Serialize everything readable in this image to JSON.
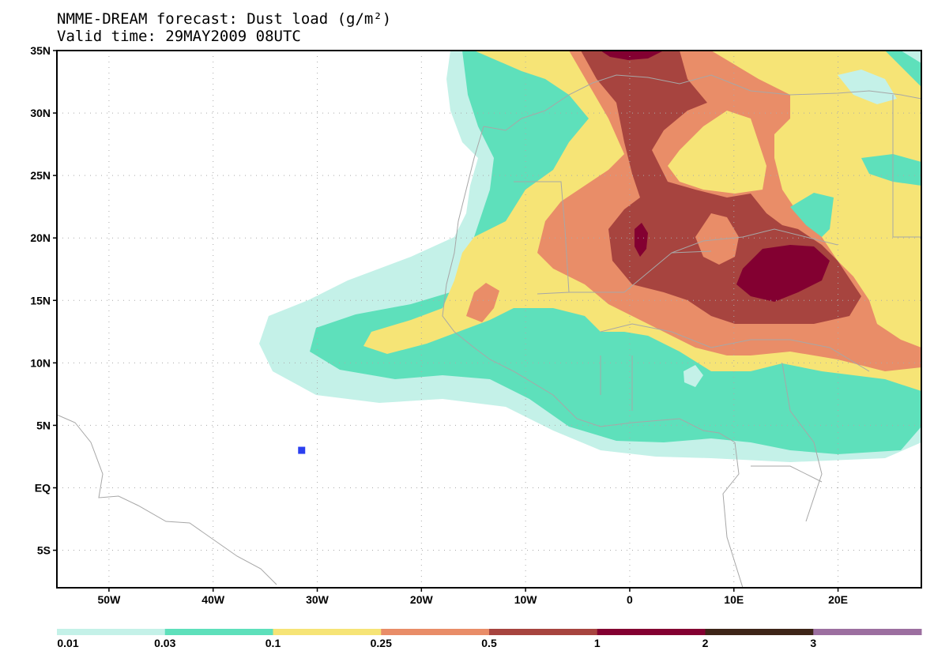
{
  "title": {
    "line1": "NMME-DREAM forecast: Dust load (g/m²)",
    "line2": "Valid time: 29MAY2009 08UTC"
  },
  "map": {
    "lon_range": [
      -55,
      28
    ],
    "lat_range": [
      -8,
      35
    ],
    "lat_ticks": [
      {
        "value": 35,
        "label": "35N"
      },
      {
        "value": 30,
        "label": "30N"
      },
      {
        "value": 25,
        "label": "25N"
      },
      {
        "value": 20,
        "label": "20N"
      },
      {
        "value": 15,
        "label": "15N"
      },
      {
        "value": 10,
        "label": "10N"
      },
      {
        "value": 5,
        "label": "5N"
      },
      {
        "value": 0,
        "label": "EQ"
      },
      {
        "value": -5,
        "label": "5S"
      }
    ],
    "lon_ticks": [
      {
        "value": -50,
        "label": "50W"
      },
      {
        "value": -40,
        "label": "40W"
      },
      {
        "value": -30,
        "label": "30W"
      },
      {
        "value": -20,
        "label": "20W"
      },
      {
        "value": -10,
        "label": "10W"
      },
      {
        "value": 0,
        "label": "0"
      },
      {
        "value": 10,
        "label": "10E"
      },
      {
        "value": 20,
        "label": "20E"
      }
    ],
    "station_marker": {
      "lon": -31.5,
      "lat": 3,
      "color": "#2b3ff0"
    }
  },
  "colorbar": {
    "colors": [
      "#c4f1e8",
      "#5ee0bb",
      "#f6e476",
      "#e98d68",
      "#a7443f",
      "#830031",
      "#3e2518",
      "#9c6fa0"
    ],
    "labels": [
      "0.01",
      "0.03",
      "0.1",
      "0.25",
      "0.5",
      "1",
      "2",
      "3"
    ]
  }
}
